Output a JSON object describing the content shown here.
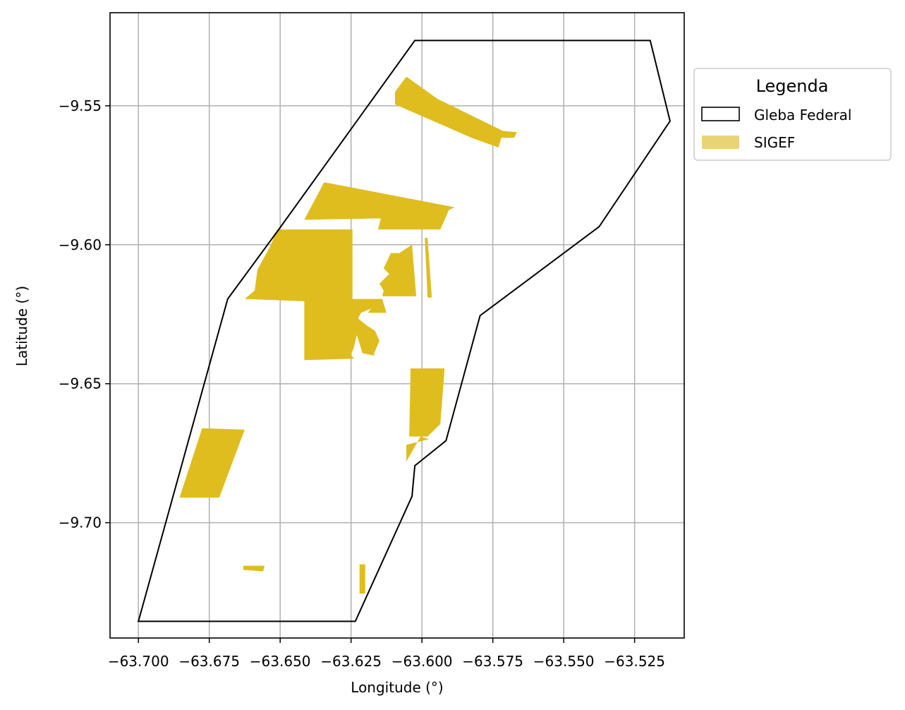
{
  "chart_data": {
    "type": "map",
    "xlabel": "Longitude (°)",
    "ylabel": "Latitude (°)",
    "xlim": [
      -63.71,
      -63.5075
    ],
    "ylim": [
      -9.7415,
      -9.5165
    ],
    "xticks": [
      -63.7,
      -63.675,
      -63.65,
      -63.625,
      -63.6,
      -63.575,
      -63.55,
      -63.525
    ],
    "xtick_labels": [
      "−63.700",
      "−63.675",
      "−63.650",
      "−63.625",
      "−63.600",
      "−63.575",
      "−63.550",
      "−63.525"
    ],
    "yticks": [
      -9.55,
      -9.6,
      -9.65,
      -9.7
    ],
    "ytick_labels": [
      "−9.55",
      "−9.60",
      "−9.65",
      "−9.70"
    ],
    "grid": true,
    "legend": {
      "title": "Legenda",
      "placement": "outside-right-top",
      "entries": [
        {
          "label": "Gleba Federal",
          "style": "outline",
          "color": "#000000"
        },
        {
          "label": "SIGEF",
          "style": "fill",
          "color": "#e9d475"
        }
      ]
    },
    "colors": {
      "gleba_outline": "#000000",
      "sigef_fill": "#dfbd1f",
      "grid": "#b0b0b0"
    },
    "series": [
      {
        "name": "Gleba Federal",
        "kind": "outline",
        "polygons": [
          [
            [
              -63.7,
              -9.7355
            ],
            [
              -63.6685,
              -9.6195
            ],
            [
              -63.6505,
              -9.5945
            ],
            [
              -63.6025,
              -9.5265
            ],
            [
              -63.5195,
              -9.5265
            ],
            [
              -63.5125,
              -9.5555
            ],
            [
              -63.5375,
              -9.5935
            ],
            [
              -63.5795,
              -9.6255
            ],
            [
              -63.5915,
              -9.6705
            ],
            [
              -63.6025,
              -9.6795
            ],
            [
              -63.6035,
              -9.6905
            ],
            [
              -63.6235,
              -9.7355
            ]
          ]
        ]
      },
      {
        "name": "SIGEF",
        "kind": "fill",
        "polygons": [
          [
            [
              -63.6095,
              -9.545
            ],
            [
              -63.6055,
              -9.5395
            ],
            [
              -63.5945,
              -9.5475
            ],
            [
              -63.5715,
              -9.559
            ],
            [
              -63.5665,
              -9.5595
            ],
            [
              -63.5675,
              -9.5615
            ],
            [
              -63.572,
              -9.5615
            ],
            [
              -63.573,
              -9.565
            ],
            [
              -63.5825,
              -9.5615
            ],
            [
              -63.6095,
              -9.5495
            ]
          ],
          [
            [
              -63.6415,
              -9.591
            ],
            [
              -63.6345,
              -9.5775
            ],
            [
              -63.5885,
              -9.5865
            ],
            [
              -63.5905,
              -9.5875
            ],
            [
              -63.5935,
              -9.5945
            ],
            [
              -63.6155,
              -9.5945
            ],
            [
              -63.6145,
              -9.5905
            ]
          ],
          [
            [
              -63.651,
              -9.5945
            ],
            [
              -63.6245,
              -9.5945
            ],
            [
              -63.6245,
              -9.621
            ],
            [
              -63.6625,
              -9.6195
            ],
            [
              -63.659,
              -9.6165
            ],
            [
              -63.658,
              -9.609
            ],
            [
              -63.6535,
              -9.6005
            ]
          ],
          [
            [
              -63.6415,
              -9.6195
            ],
            [
              -63.614,
              -9.6195
            ],
            [
              -63.6125,
              -9.6245
            ],
            [
              -63.619,
              -9.6245
            ],
            [
              -63.618,
              -9.623
            ],
            [
              -63.6215,
              -9.6245
            ],
            [
              -63.6225,
              -9.6265
            ],
            [
              -63.6195,
              -9.629
            ],
            [
              -63.6165,
              -9.631
            ],
            [
              -63.615,
              -9.6345
            ],
            [
              -63.617,
              -9.6395
            ],
            [
              -63.6165,
              -9.64
            ],
            [
              -63.621,
              -9.639
            ],
            [
              -63.622,
              -9.6355
            ],
            [
              -63.623,
              -9.6325
            ],
            [
              -63.624,
              -9.637
            ],
            [
              -63.625,
              -9.6395
            ],
            [
              -63.624,
              -9.641
            ],
            [
              -63.6415,
              -9.6415
            ]
          ],
          [
            [
              -63.614,
              -9.6185
            ],
            [
              -63.602,
              -9.6185
            ],
            [
              -63.6035,
              -9.6
            ],
            [
              -63.608,
              -9.603
            ],
            [
              -63.611,
              -9.603
            ],
            [
              -63.6135,
              -9.6085
            ],
            [
              -63.6115,
              -9.6105
            ],
            [
              -63.615,
              -9.614
            ],
            [
              -63.6135,
              -9.6165
            ]
          ],
          [
            [
              -63.599,
              -9.5975
            ],
            [
              -63.598,
              -9.5975
            ],
            [
              -63.5965,
              -9.619
            ],
            [
              -63.598,
              -9.619
            ]
          ],
          [
            [
              -63.604,
              -9.6445
            ],
            [
              -63.592,
              -9.6445
            ],
            [
              -63.5935,
              -9.6645
            ],
            [
              -63.598,
              -9.669
            ],
            [
              -63.6045,
              -9.669
            ]
          ],
          [
            [
              -63.6005,
              -9.669
            ],
            [
              -63.599,
              -9.6695
            ],
            [
              -63.5975,
              -9.67
            ],
            [
              -63.6055,
              -9.672
            ],
            [
              -63.6055,
              -9.678
            ]
          ],
          [
            [
              -63.6775,
              -9.666
            ],
            [
              -63.6625,
              -9.6665
            ],
            [
              -63.6715,
              -9.691
            ],
            [
              -63.6855,
              -9.691
            ]
          ],
          [
            [
              -63.663,
              -9.7155
            ],
            [
              -63.6555,
              -9.7155
            ],
            [
              -63.656,
              -9.7175
            ],
            [
              -63.663,
              -9.717
            ]
          ],
          [
            [
              -63.622,
              -9.715
            ],
            [
              -63.62,
              -9.715
            ],
            [
              -63.62,
              -9.7255
            ],
            [
              -63.622,
              -9.7255
            ]
          ]
        ]
      }
    ]
  }
}
